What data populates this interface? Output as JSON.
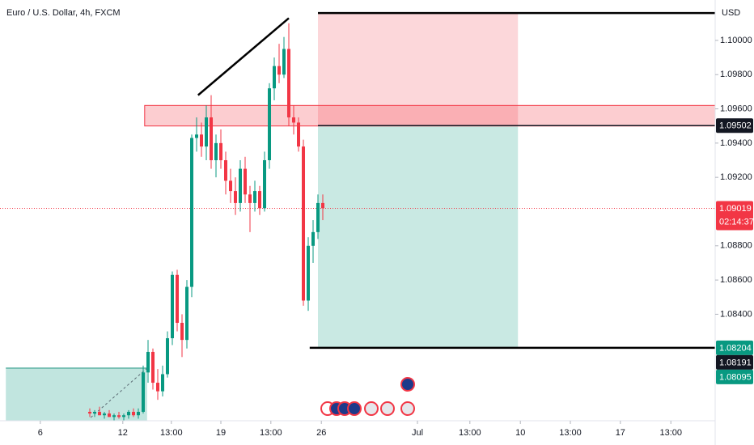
{
  "chart_data": {
    "type": "candlestick",
    "title": "Euro / U.S. Dollar, 4h, FXCM",
    "currency": "USD",
    "up_color": "#089981",
    "down_color": "#f23645",
    "x": [
      18,
      19,
      20,
      21,
      22,
      23,
      24,
      25,
      26,
      27,
      28,
      29,
      30,
      31,
      32,
      33,
      34,
      35,
      36,
      37,
      38,
      39,
      40,
      41,
      42,
      43,
      44,
      45,
      46,
      47,
      48,
      49,
      50,
      51,
      52,
      53,
      54,
      55,
      56,
      57,
      58,
      59,
      60,
      61,
      62,
      63,
      64,
      65,
      66
    ],
    "open": [
      1.0783,
      1.0782,
      1.0783,
      1.0781,
      1.0782,
      1.078,
      1.0781,
      1.078,
      1.0781,
      1.0783,
      1.0781,
      1.0783,
      1.0806,
      1.0818,
      1.08,
      1.0795,
      1.0805,
      1.0826,
      1.0863,
      1.0835,
      1.0825,
      1.0856,
      1.0943,
      1.0945,
      1.0938,
      1.0955,
      1.093,
      1.094,
      1.093,
      1.0918,
      1.0912,
      1.0905,
      1.0925,
      1.091,
      1.0905,
      1.0912,
      1.0902,
      1.093,
      1.0972,
      1.0985,
      1.098,
      1.0995,
      1.0955,
      1.0952,
      1.0938,
      1.0848,
      1.088,
      1.0888,
      1.0905
    ],
    "high": [
      1.0785,
      1.0784,
      1.0786,
      1.0783,
      1.0784,
      1.0782,
      1.0783,
      1.0782,
      1.0784,
      1.0785,
      1.0785,
      1.081,
      1.0825,
      1.082,
      1.0808,
      1.081,
      1.083,
      1.0865,
      1.0866,
      1.084,
      1.086,
      1.0945,
      1.0955,
      1.0952,
      1.0962,
      1.0968,
      1.0945,
      1.0948,
      1.0935,
      1.0925,
      1.092,
      1.093,
      1.0932,
      1.0915,
      1.0918,
      1.0915,
      1.0935,
      1.0975,
      1.099,
      1.0998,
      1.1002,
      1.101,
      1.0962,
      1.0955,
      1.0942,
      1.0885,
      1.0895,
      1.091,
      1.091
    ],
    "low": [
      1.078,
      1.078,
      1.0781,
      1.0779,
      1.078,
      1.0778,
      1.0779,
      1.0778,
      1.0779,
      1.078,
      1.0779,
      1.0782,
      1.08,
      1.0796,
      1.079,
      1.0792,
      1.0803,
      1.0822,
      1.083,
      1.0815,
      1.082,
      1.085,
      1.0935,
      1.0932,
      1.093,
      1.0925,
      1.092,
      1.0925,
      1.091,
      1.0905,
      1.0898,
      1.09,
      1.0905,
      1.0888,
      1.09,
      1.0898,
      1.09,
      1.0925,
      1.0965,
      1.0975,
      1.0978,
      1.095,
      1.0945,
      1.0935,
      1.0845,
      1.0842,
      1.087,
      1.0884,
      1.0895
    ],
    "close": [
      1.0782,
      1.0783,
      1.0781,
      1.0782,
      1.078,
      1.0781,
      1.078,
      1.0781,
      1.0783,
      1.0781,
      1.0783,
      1.0806,
      1.0818,
      1.08,
      1.0795,
      1.0805,
      1.0826,
      1.0863,
      1.0835,
      1.0825,
      1.0856,
      1.0943,
      1.0945,
      1.0938,
      1.0955,
      1.093,
      1.094,
      1.093,
      1.0918,
      1.0912,
      1.0905,
      1.0925,
      1.091,
      1.0905,
      1.0912,
      1.0902,
      1.093,
      1.0972,
      1.0985,
      1.098,
      1.0995,
      1.0955,
      1.0952,
      1.0938,
      1.0848,
      1.088,
      1.0888,
      1.0905,
      1.0902
    ],
    "xlim": [
      -0.5,
      146.83
    ],
    "ylim": [
      1.07778,
      1.10236
    ],
    "xticks": [
      {
        "value": 7.8,
        "label": "6"
      },
      {
        "value": 24.8,
        "label": "12"
      },
      {
        "value": 34.8,
        "label": "13:00"
      },
      {
        "value": 45,
        "label": "19"
      },
      {
        "value": 55.3,
        "label": "13:00"
      },
      {
        "value": 65.7,
        "label": "26"
      },
      {
        "value": 85.5,
        "label": "Jul"
      },
      {
        "value": 96.3,
        "label": "13:00"
      },
      {
        "value": 106.7,
        "label": "10"
      },
      {
        "value": 117,
        "label": "13:00"
      },
      {
        "value": 127.3,
        "label": "17"
      },
      {
        "value": 137.7,
        "label": "13:00"
      }
    ],
    "yticks": [
      {
        "value": 1.1,
        "label": "1.10000"
      },
      {
        "value": 1.098,
        "label": "1.09800"
      },
      {
        "value": 1.096,
        "label": "1.09600"
      },
      {
        "value": 1.094,
        "label": "1.09400"
      },
      {
        "value": 1.092,
        "label": "1.09200"
      },
      {
        "value": 1.088,
        "label": "1.08800"
      },
      {
        "value": 1.086,
        "label": "1.08600"
      },
      {
        "value": 1.084,
        "label": "1.08400"
      }
    ],
    "current_price": {
      "value": 1.09019,
      "label": "1.09019",
      "countdown": "02:14:37",
      "color": "#f23645"
    },
    "price_labels": [
      {
        "value": 1.09502,
        "label": "1.09502",
        "color": "#131722"
      },
      {
        "value": 1.08204,
        "label": "1.08204",
        "color": "#089981"
      },
      {
        "value": 1.08191,
        "label": "1.08191",
        "color": "#131722"
      },
      {
        "value": 1.08095,
        "label": "1.08095",
        "color": "#089981"
      }
    ],
    "zone": {
      "top": 1.0962,
      "bottom": 1.095,
      "start": 29.3
    },
    "position": {
      "entry": 1.09502,
      "stop": 1.1016,
      "target": 1.08204,
      "start": 65,
      "end": 106.2
    },
    "trend_line": {
      "x": [
        40.3,
        59
      ],
      "y": [
        1.0968,
        1.1013
      ]
    },
    "lines": [
      {
        "price": 1.1016,
        "start": 65
      },
      {
        "price": 1.08204,
        "start": 63.3
      }
    ],
    "box": {
      "top": 1.08085,
      "start": 0.7,
      "end": 29.8
    }
  }
}
